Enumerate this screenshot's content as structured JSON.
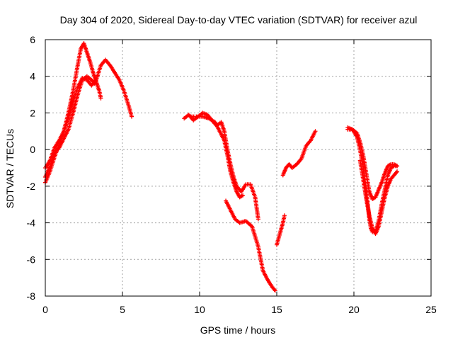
{
  "chart_data": {
    "type": "scatter",
    "title": "Day 304 of 2020, Sidereal Day-to-day VTEC variation (SDTVAR) for receiver azul",
    "xlabel": "GPS time / hours",
    "ylabel": "SDTVAR / TECUs",
    "xlim": [
      0,
      25
    ],
    "ylim": [
      -8,
      6
    ],
    "xticks": [
      0,
      5,
      10,
      15,
      20,
      25
    ],
    "yticks": [
      -8,
      -6,
      -4,
      -2,
      0,
      2,
      4,
      6
    ],
    "xtick_labels": [
      "0",
      "5",
      "10",
      "15",
      "20",
      "25"
    ],
    "ytick_labels": [
      "-8",
      "-6",
      "-4",
      "-2",
      "0",
      "2",
      "4",
      "6"
    ],
    "grid": true,
    "marker": "+",
    "color": "#ff0000",
    "series": [
      {
        "name": "arc-1",
        "x": [
          0.0,
          0.3,
          0.6,
          0.9,
          1.2,
          1.5,
          1.8,
          2.1,
          2.3,
          2.5,
          2.7,
          2.9,
          3.1,
          3.3,
          3.5,
          3.6
        ],
        "y": [
          -1.8,
          -1.2,
          -0.4,
          0.3,
          1.0,
          2.0,
          3.2,
          4.6,
          5.5,
          5.8,
          5.3,
          4.8,
          4.2,
          3.7,
          3.2,
          2.8
        ]
      },
      {
        "name": "arc-2",
        "x": [
          0.0,
          0.3,
          0.6,
          0.9,
          1.2,
          1.5,
          1.8,
          2.1,
          2.4,
          2.7,
          3.0,
          3.3,
          3.6,
          3.9,
          4.2,
          4.5,
          4.8,
          5.1,
          5.4,
          5.6
        ],
        "y": [
          -1.0,
          -0.6,
          0.1,
          0.5,
          1.0,
          1.7,
          2.6,
          3.4,
          3.9,
          3.8,
          3.5,
          3.8,
          4.6,
          4.9,
          4.6,
          4.2,
          3.8,
          3.2,
          2.4,
          1.8
        ]
      },
      {
        "name": "arc-3",
        "x": [
          0.0,
          0.3,
          0.6,
          0.9,
          1.2,
          1.5,
          1.8,
          2.1,
          2.4,
          2.7,
          3.0,
          3.2
        ],
        "y": [
          -1.5,
          -0.9,
          -0.2,
          0.1,
          0.6,
          1.1,
          2.0,
          3.0,
          3.8,
          4.0,
          3.8,
          3.6
        ]
      },
      {
        "name": "arc-4",
        "x": [
          9.0,
          9.3,
          9.6,
          9.9,
          10.2,
          10.5,
          10.8,
          11.1,
          11.4,
          11.6,
          11.8,
          12.0,
          12.2,
          12.4,
          12.7,
          13.0,
          13.3,
          13.6,
          13.8
        ],
        "y": [
          1.7,
          1.9,
          1.6,
          1.8,
          2.0,
          1.9,
          1.6,
          1.3,
          1.5,
          1.0,
          0.0,
          -0.8,
          -1.5,
          -2.0,
          -2.3,
          -1.9,
          -1.9,
          -2.6,
          -3.8
        ]
      },
      {
        "name": "arc-5",
        "x": [
          9.4,
          9.8,
          10.2,
          10.6,
          11.0,
          11.3,
          11.6,
          11.8,
          12.0,
          12.2,
          12.4,
          12.6,
          12.8
        ],
        "y": [
          1.8,
          1.8,
          1.8,
          1.7,
          1.5,
          1.0,
          0.5,
          -0.3,
          -1.2,
          -1.8,
          -2.3,
          -2.6,
          -2.5
        ]
      },
      {
        "name": "arc-6",
        "x": [
          11.7,
          12.0,
          12.3,
          12.6,
          13.0,
          13.4,
          13.8,
          14.1,
          14.4,
          14.7,
          14.9
        ],
        "y": [
          -2.8,
          -3.3,
          -3.8,
          -4.0,
          -3.9,
          -4.2,
          -5.3,
          -6.6,
          -7.1,
          -7.5,
          -7.7
        ]
      },
      {
        "name": "arc-7",
        "x": [
          15.0,
          15.2,
          15.4,
          15.5
        ],
        "y": [
          -5.2,
          -4.6,
          -4.0,
          -3.6
        ]
      },
      {
        "name": "arc-8",
        "x": [
          15.4,
          15.6,
          15.8,
          16.0,
          16.3,
          16.6,
          16.9,
          17.2,
          17.5
        ],
        "y": [
          -1.4,
          -1.0,
          -0.8,
          -1.0,
          -0.8,
          -0.5,
          0.2,
          0.5,
          1.0
        ]
      },
      {
        "name": "arc-9",
        "x": [
          19.6,
          19.9,
          20.2,
          20.4,
          20.6,
          20.8,
          20.9,
          21.0,
          21.1,
          21.2,
          21.4,
          21.6,
          21.8,
          22.0,
          22.2,
          22.4,
          22.6,
          22.8
        ],
        "y": [
          1.1,
          1.1,
          0.7,
          0.0,
          -1.0,
          -2.2,
          -3.0,
          -3.8,
          -4.3,
          -4.5,
          -4.5,
          -3.9,
          -3.0,
          -2.2,
          -1.4,
          -1.0,
          -0.9,
          -0.9
        ]
      },
      {
        "name": "arc-10",
        "x": [
          19.6,
          19.9,
          20.2,
          20.4,
          20.6,
          20.8,
          21.0,
          21.2,
          21.4,
          21.6,
          21.8,
          22.0,
          22.2,
          22.4,
          22.6,
          22.8
        ],
        "y": [
          1.2,
          1.1,
          0.9,
          0.4,
          -0.3,
          -1.3,
          -2.3,
          -2.7,
          -2.6,
          -2.2,
          -1.8,
          -1.3,
          -0.9,
          -0.8,
          -0.8,
          -0.9
        ]
      },
      {
        "name": "arc-11",
        "x": [
          20.4,
          20.6,
          20.8,
          21.0,
          21.2,
          21.4,
          21.6,
          21.8,
          22.0,
          22.2,
          22.4,
          22.6,
          22.8
        ],
        "y": [
          -0.6,
          -1.6,
          -2.7,
          -3.6,
          -4.3,
          -4.6,
          -4.2,
          -3.4,
          -2.6,
          -2.0,
          -1.6,
          -1.4,
          -1.2
        ]
      }
    ]
  }
}
